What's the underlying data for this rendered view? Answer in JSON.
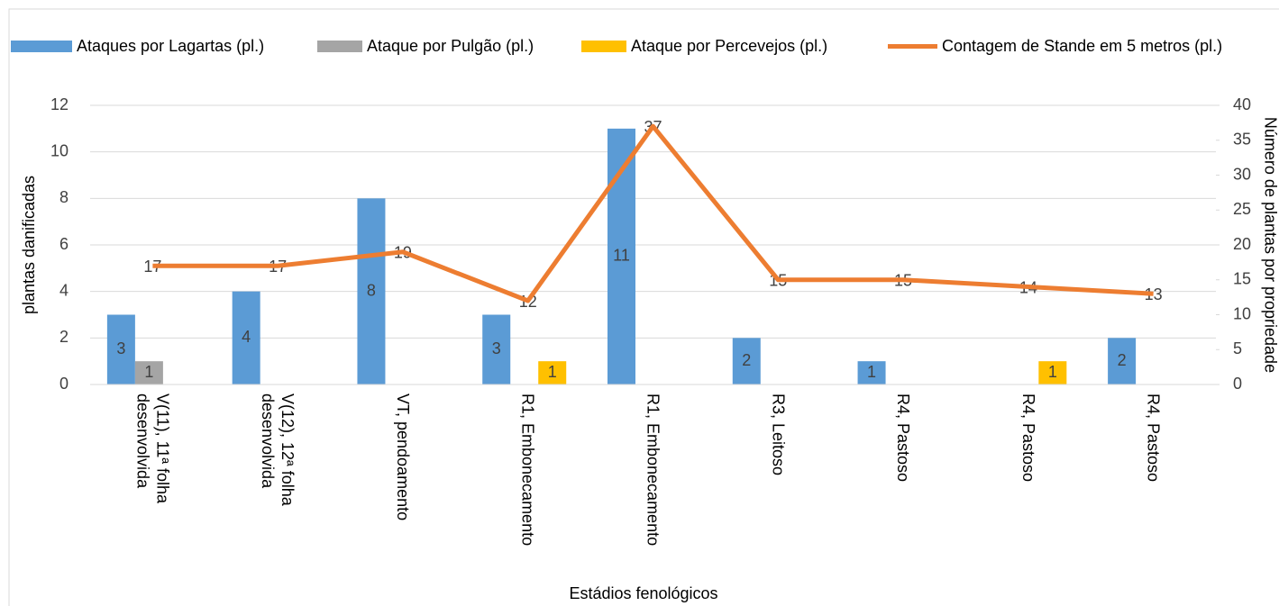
{
  "chart_data": {
    "type": "bar",
    "xlabel": "Estádios fenológicos",
    "ylabel": "plantas danificadas",
    "y2label": "Número de plantas por propriedade",
    "categories": [
      "V(11), 11ª folha desenvolvida",
      "V(12), 12ª folha desenvolvida",
      "VT, pendoamento",
      "R1, Embonecamento",
      "R1, Embonecamento",
      "R3, Leitoso",
      "R4, Pastoso",
      "R4, Pastoso",
      "R4, Pastoso"
    ],
    "series": [
      {
        "name": "Ataques por Lagartas (pl.)",
        "type": "bar",
        "color": "#5b9bd5",
        "values": [
          3,
          4,
          8,
          3,
          11,
          2,
          1,
          null,
          2
        ]
      },
      {
        "name": "Ataque por Pulgão (pl.)",
        "type": "bar",
        "color": "#a5a5a5",
        "values": [
          1,
          null,
          null,
          null,
          null,
          null,
          null,
          null,
          null
        ]
      },
      {
        "name": "Ataque por Percevejos (pl.)",
        "type": "bar",
        "color": "#ffc000",
        "values": [
          null,
          null,
          null,
          1,
          null,
          null,
          null,
          1,
          null
        ]
      },
      {
        "name": "Contagem de Stande em 5 metros (pl.)",
        "type": "line",
        "axis": "y2",
        "color": "#ed7d31",
        "values": [
          17,
          17,
          19,
          12,
          37,
          15,
          15,
          14,
          13
        ]
      }
    ],
    "ylim": [
      0,
      12
    ],
    "yticks": [
      0,
      2,
      4,
      6,
      8,
      10,
      12
    ],
    "y2lim": [
      0,
      40
    ],
    "y2ticks": [
      0,
      5,
      10,
      15,
      20,
      25,
      30,
      35,
      40
    ],
    "grid": true,
    "legend": "top"
  }
}
